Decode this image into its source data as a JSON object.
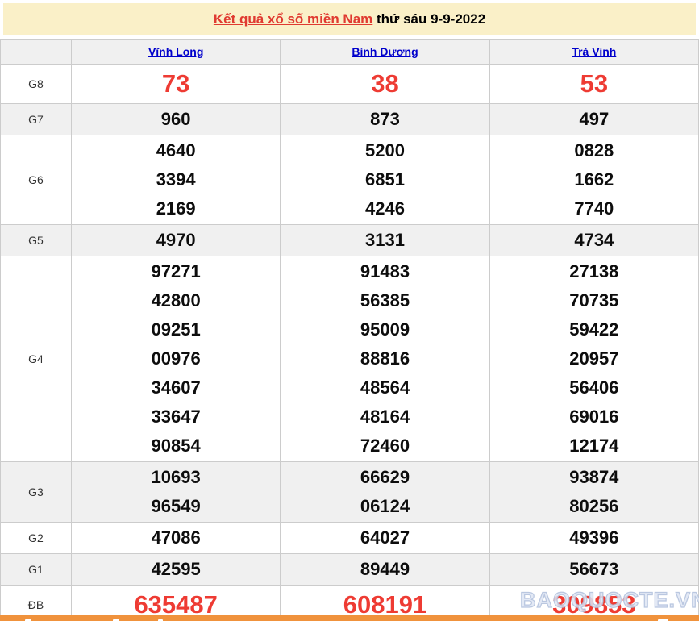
{
  "header": {
    "title_link": "Kết quả xổ số miền Nam",
    "title_rest": " thứ sáu 9-9-2022"
  },
  "table": {
    "provinces": [
      "Vĩnh Long",
      "Bình Dương",
      "Trà Vinh"
    ],
    "rows": [
      {
        "label": "G8",
        "highlight": true,
        "values": [
          [
            "73"
          ],
          [
            "38"
          ],
          [
            "53"
          ]
        ]
      },
      {
        "label": "G7",
        "values": [
          [
            "960"
          ],
          [
            "873"
          ],
          [
            "497"
          ]
        ]
      },
      {
        "label": "G6",
        "values": [
          [
            "4640",
            "3394",
            "2169"
          ],
          [
            "5200",
            "6851",
            "4246"
          ],
          [
            "0828",
            "1662",
            "7740"
          ]
        ]
      },
      {
        "label": "G5",
        "values": [
          [
            "4970"
          ],
          [
            "3131"
          ],
          [
            "4734"
          ]
        ]
      },
      {
        "label": "G4",
        "values": [
          [
            "97271",
            "42800",
            "09251",
            "00976",
            "34607",
            "33647",
            "90854"
          ],
          [
            "91483",
            "56385",
            "95009",
            "88816",
            "48564",
            "48164",
            "72460"
          ],
          [
            "27138",
            "70735",
            "59422",
            "20957",
            "56406",
            "69016",
            "12174"
          ]
        ]
      },
      {
        "label": "G3",
        "values": [
          [
            "10693",
            "96549"
          ],
          [
            "66629",
            "06124"
          ],
          [
            "93874",
            "80256"
          ]
        ]
      },
      {
        "label": "G2",
        "values": [
          [
            "47086"
          ],
          [
            "64027"
          ],
          [
            "49396"
          ]
        ]
      },
      {
        "label": "G1",
        "values": [
          [
            "42595"
          ],
          [
            "89449"
          ],
          [
            "56673"
          ]
        ]
      },
      {
        "label": "ĐB",
        "highlight": true,
        "values": [
          [
            "635487"
          ],
          [
            "608191"
          ],
          [
            "309853"
          ]
        ]
      }
    ]
  },
  "watermark": "BAOQUOCTE.VN",
  "colors": {
    "band_bg": "#faf0c8",
    "title_red": "#e03a30",
    "link_blue": "#0000cc",
    "number_red": "#ee3b33",
    "orange_bar": "#f0923c"
  }
}
